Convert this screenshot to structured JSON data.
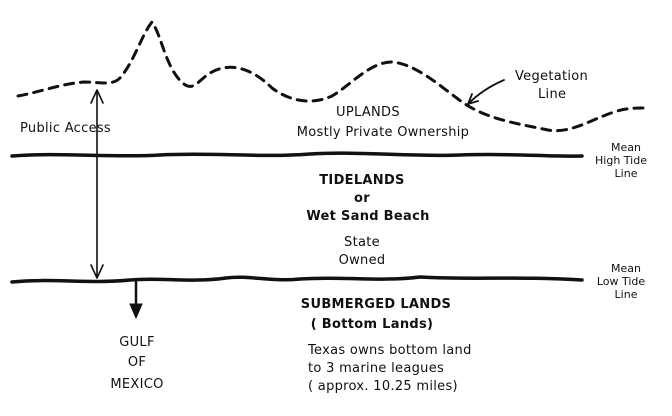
{
  "labels": {
    "vegetation_line": [
      "Vegetation",
      "Line"
    ],
    "public_access": "Public Access",
    "uplands_title": "UPLANDS",
    "uplands_sub": "Mostly Private Ownership",
    "mean_high_tide": [
      "Mean",
      "High Tide",
      "Line"
    ],
    "tidelands": [
      "TIDELANDS",
      "or",
      "Wet Sand Beach"
    ],
    "state_owned": [
      "State",
      "Owned"
    ],
    "mean_low_tide": [
      "Mean",
      "Low Tide",
      "Line"
    ],
    "submerged_title": "SUBMERGED LANDS",
    "submerged_sub": "( Bottom Lands)",
    "texas_note": [
      "Texas owns bottom land",
      "to 3 marine leagues",
      "( approx. 10.25 miles)"
    ],
    "gulf": [
      "GULF",
      "OF",
      "MEXICO"
    ]
  }
}
